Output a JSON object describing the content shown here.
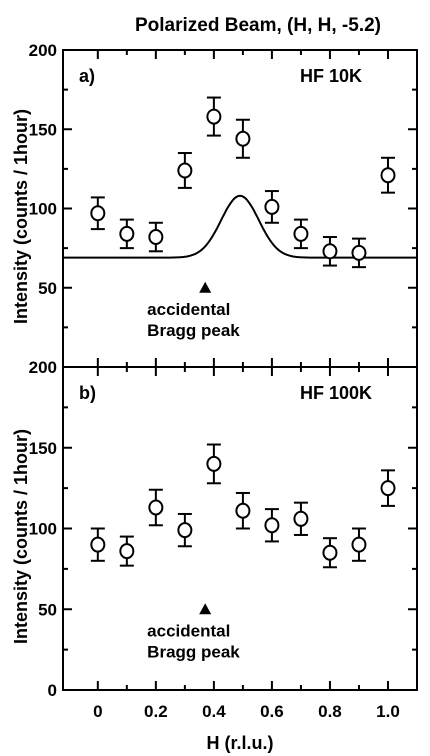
{
  "title": "Polarized Beam, (H, H, -5.2)",
  "xlabel": "H (r.l.u.)",
  "chart_data": [
    {
      "type": "scatter",
      "panel_label": "a)",
      "condition": "HF 10K",
      "ylabel": "Intensity (counts / 1hour)",
      "ylim": [
        0,
        200
      ],
      "xlim": [
        -0.12,
        1.1
      ],
      "yticks": [
        50,
        100,
        150,
        200
      ],
      "points": [
        {
          "x": 0.0,
          "y": 97,
          "err": 10
        },
        {
          "x": 0.1,
          "y": 84,
          "err": 9
        },
        {
          "x": 0.2,
          "y": 82,
          "err": 9
        },
        {
          "x": 0.3,
          "y": 124,
          "err": 11
        },
        {
          "x": 0.4,
          "y": 158,
          "err": 12
        },
        {
          "x": 0.5,
          "y": 144,
          "err": 12
        },
        {
          "x": 0.6,
          "y": 101,
          "err": 10
        },
        {
          "x": 0.7,
          "y": 84,
          "err": 9
        },
        {
          "x": 0.8,
          "y": 73,
          "err": 9
        },
        {
          "x": 0.9,
          "y": 72,
          "err": 9
        },
        {
          "x": 1.0,
          "y": 121,
          "err": 11
        }
      ],
      "fit": {
        "baseline": 69,
        "amplitude": 39,
        "center": 0.49,
        "sigma": 0.065
      },
      "annotation": {
        "x": 0.37,
        "y": 50,
        "lines": [
          "accidental",
          "Bragg peak"
        ]
      }
    },
    {
      "type": "scatter",
      "panel_label": "b)",
      "condition": "HF 100K",
      "ylabel": "Intensity (counts / 1hour)",
      "ylim": [
        0,
        200
      ],
      "xlim": [
        -0.12,
        1.1
      ],
      "yticks": [
        0,
        50,
        100,
        150,
        200
      ],
      "xticks": [
        "0",
        "0.2",
        "0.4",
        "0.6",
        "0.8",
        "1.0"
      ],
      "points": [
        {
          "x": 0.0,
          "y": 90,
          "err": 10
        },
        {
          "x": 0.1,
          "y": 86,
          "err": 9
        },
        {
          "x": 0.2,
          "y": 113,
          "err": 11
        },
        {
          "x": 0.3,
          "y": 99,
          "err": 10
        },
        {
          "x": 0.4,
          "y": 140,
          "err": 12
        },
        {
          "x": 0.5,
          "y": 111,
          "err": 11
        },
        {
          "x": 0.6,
          "y": 102,
          "err": 10
        },
        {
          "x": 0.7,
          "y": 106,
          "err": 10
        },
        {
          "x": 0.8,
          "y": 85,
          "err": 9
        },
        {
          "x": 0.9,
          "y": 90,
          "err": 10
        },
        {
          "x": 1.0,
          "y": 125,
          "err": 11
        }
      ],
      "annotation": {
        "x": 0.37,
        "y": 50,
        "lines": [
          "accidental",
          "Bragg peak"
        ]
      }
    }
  ]
}
